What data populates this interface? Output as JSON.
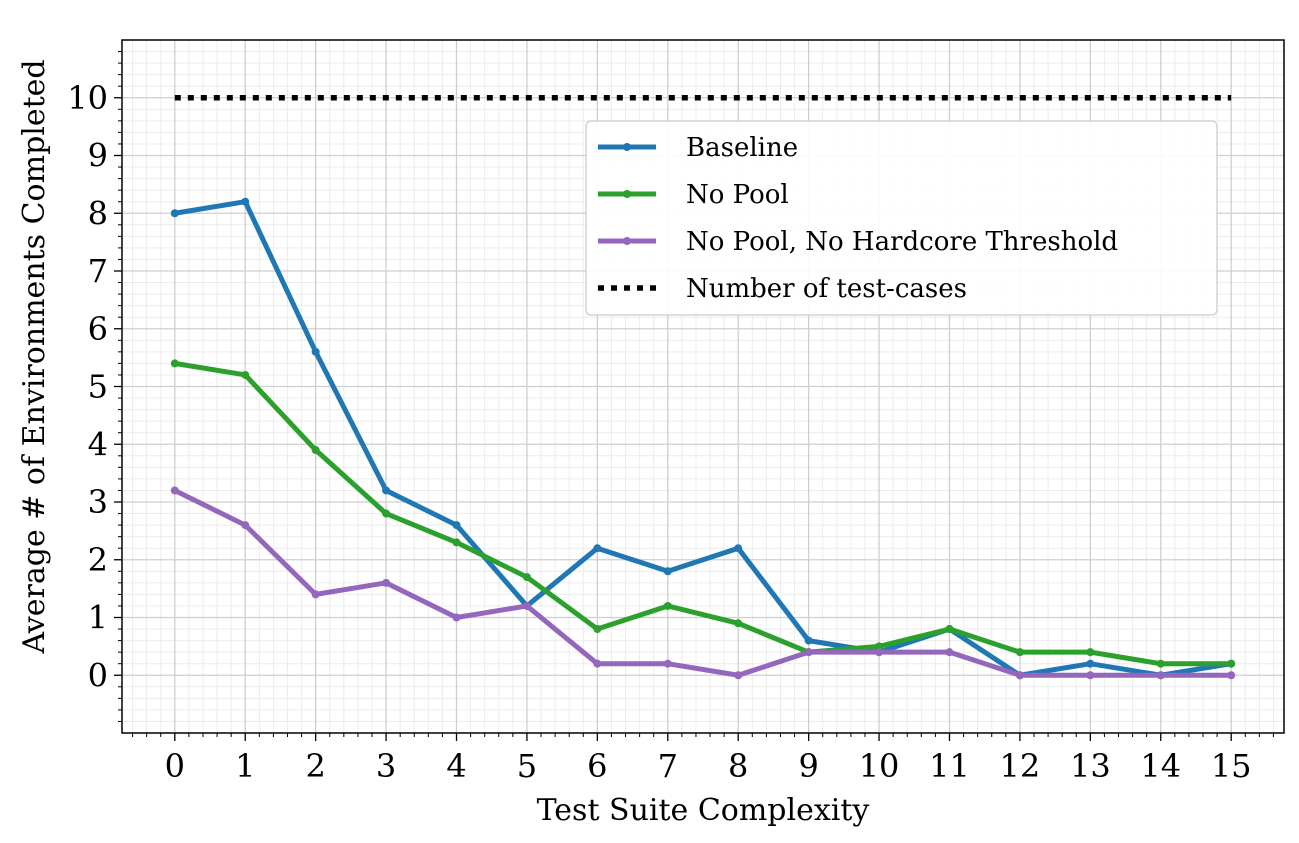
{
  "chart_data": {
    "type": "line",
    "title": "",
    "xlabel": "Test Suite Complexity",
    "ylabel": "Average # of Environments Completed",
    "x": [
      0,
      1,
      2,
      3,
      4,
      5,
      6,
      7,
      8,
      9,
      10,
      11,
      12,
      13,
      14,
      15
    ],
    "x_ticks": [
      "0",
      "1",
      "2",
      "3",
      "4",
      "5",
      "6",
      "7",
      "8",
      "9",
      "10",
      "11",
      "12",
      "13",
      "14",
      "15"
    ],
    "y_ticks": [
      "0",
      "1",
      "2",
      "3",
      "4",
      "5",
      "6",
      "7",
      "8",
      "9",
      "10"
    ],
    "xlim": [
      -0.75,
      15.75
    ],
    "ylim": [
      -1,
      11
    ],
    "grid": true,
    "minor_grid": true,
    "legend_position": "upper-right",
    "series": [
      {
        "name": "Baseline",
        "color": "#1f77b4",
        "style": "solid",
        "marker": "dot",
        "values": [
          8.0,
          8.2,
          5.6,
          3.2,
          2.6,
          1.2,
          2.2,
          1.8,
          2.2,
          0.6,
          0.4,
          0.8,
          0.0,
          0.2,
          0.0,
          0.2
        ]
      },
      {
        "name": "No Pool",
        "color": "#2ca02c",
        "style": "solid",
        "marker": "dot",
        "values": [
          5.4,
          5.2,
          3.9,
          2.8,
          2.3,
          1.7,
          0.8,
          1.2,
          0.9,
          0.4,
          0.5,
          0.8,
          0.4,
          0.4,
          0.2,
          0.2
        ]
      },
      {
        "name": "No Pool, No Hardcore Threshold",
        "color": "#9467bd",
        "style": "solid",
        "marker": "dot",
        "values": [
          3.2,
          2.6,
          1.4,
          1.6,
          1.0,
          1.2,
          0.2,
          0.2,
          0.0,
          0.4,
          0.4,
          0.4,
          0.0,
          0.0,
          0.0,
          0.0
        ]
      },
      {
        "name": "Number of test-cases",
        "color": "#000000",
        "style": "dotted",
        "marker": "none",
        "values": [
          10,
          10,
          10,
          10,
          10,
          10,
          10,
          10,
          10,
          10,
          10,
          10,
          10,
          10,
          10,
          10
        ]
      }
    ]
  }
}
